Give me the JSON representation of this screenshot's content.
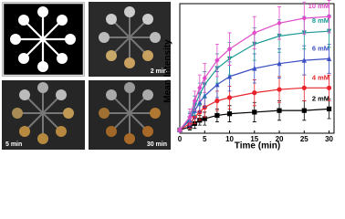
{
  "photo_labels": [
    "2 min",
    "5 min",
    "30 min"
  ],
  "chart_data": {
    "type": "line",
    "xlabel": "Time (min)",
    "ylabel": "Mean Intensity",
    "x": [
      0,
      2,
      3,
      4,
      5,
      7.5,
      10,
      15,
      20,
      25,
      30
    ],
    "xlim": [
      0,
      31
    ],
    "xticks": [
      0,
      5,
      10,
      15,
      20,
      25,
      30
    ],
    "ylim": [
      0,
      80
    ],
    "series": [
      {
        "name": "2 mM",
        "color": "#000000",
        "marker": "square",
        "values": [
          2,
          4,
          6,
          8,
          9,
          11,
          12,
          13,
          14,
          14,
          15
        ],
        "errors": [
          1,
          2,
          3,
          3,
          4,
          4,
          5,
          6,
          6,
          6,
          6
        ]
      },
      {
        "name": "4 mM",
        "color": "#e8232a",
        "marker": "circle",
        "values": [
          2,
          6,
          10,
          13,
          16,
          20,
          22,
          25,
          27,
          28,
          28
        ],
        "errors": [
          1,
          3,
          4,
          5,
          6,
          6,
          7,
          8,
          8,
          8,
          8
        ]
      },
      {
        "name": "6 mM",
        "color": "#3b4fc4",
        "marker": "triangle",
        "values": [
          2,
          8,
          14,
          19,
          23,
          30,
          35,
          40,
          43,
          45,
          46
        ],
        "errors": [
          1,
          4,
          5,
          6,
          7,
          8,
          9,
          9,
          9,
          9,
          9
        ]
      },
      {
        "name": "8 mM",
        "color": "#1a9a96",
        "marker": "down-triangle",
        "values": [
          2,
          9,
          17,
          24,
          30,
          40,
          46,
          55,
          60,
          62,
          63
        ],
        "errors": [
          1,
          4,
          6,
          7,
          8,
          9,
          10,
          10,
          10,
          10,
          10
        ]
      },
      {
        "name": "10 mM",
        "color": "#e04bc8",
        "marker": "diamond",
        "values": [
          2,
          10,
          20,
          28,
          34,
          45,
          52,
          62,
          68,
          71,
          72
        ],
        "errors": [
          1,
          5,
          6,
          8,
          9,
          10,
          10,
          10,
          10,
          10,
          10
        ]
      }
    ]
  }
}
